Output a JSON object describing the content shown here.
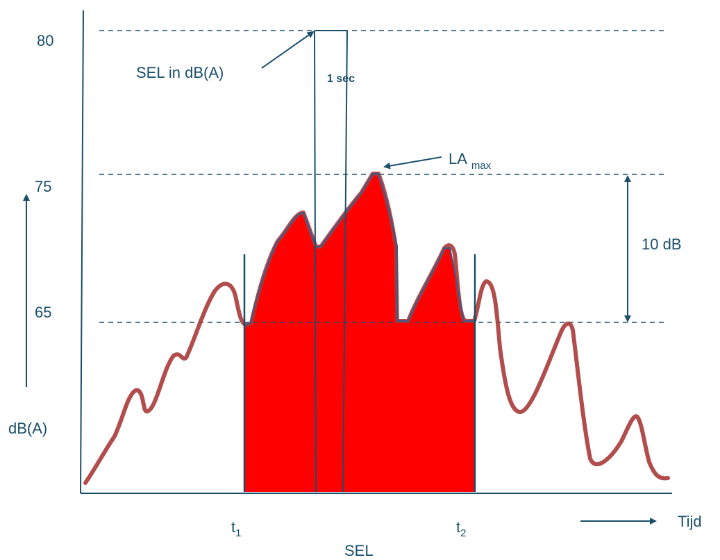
{
  "y_axis": {
    "label": "dB(A)",
    "ticks": [
      "80",
      "75",
      "65"
    ]
  },
  "x_axis": {
    "label": "Tijd",
    "t1": {
      "base": "t",
      "sub": "1"
    },
    "t2": {
      "base": "t",
      "sub": "2"
    }
  },
  "annotations": {
    "sel_in_dba": "SEL in dB(A)",
    "one_sec": "1 sec",
    "la_max": {
      "base": "LA",
      "sub": "max"
    },
    "ten_db": "10 dB",
    "sel_bottom": "SEL"
  },
  "colors": {
    "axis": "#1a4f6b",
    "curve": "#a83a3a",
    "fill": "#ff0000",
    "text": "#1a4f6b"
  }
}
